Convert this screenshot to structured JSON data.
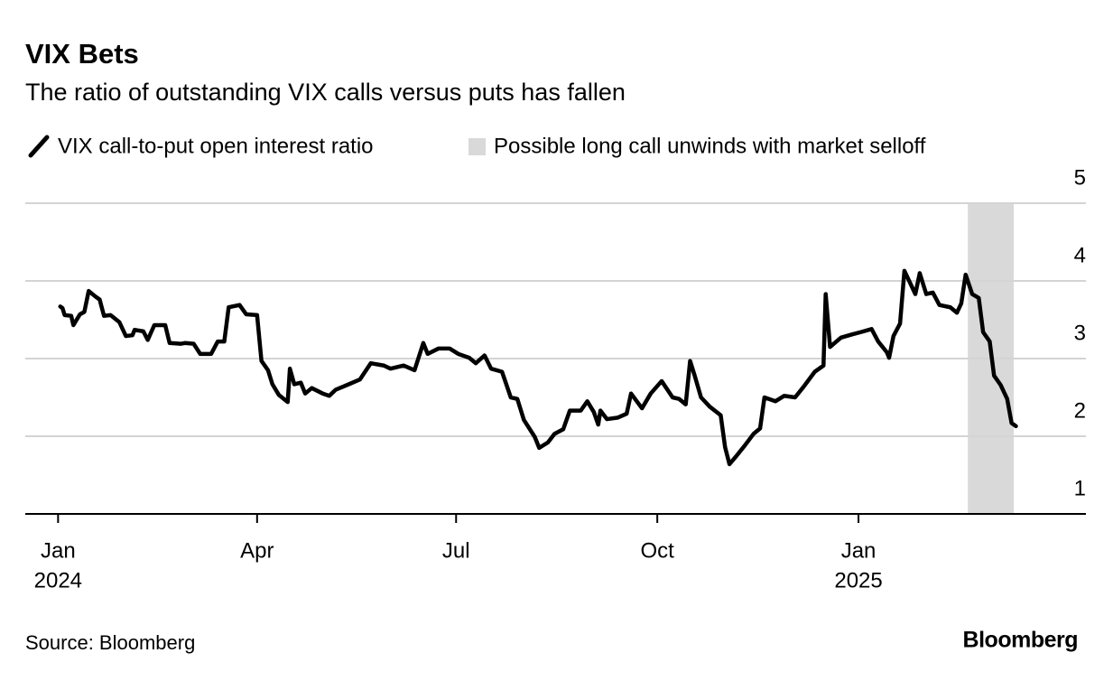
{
  "chart_data": {
    "type": "line",
    "title": "VIX Bets",
    "subtitle": "The ratio of outstanding VIX calls versus puts has fallen",
    "source": "Source: Bloomberg",
    "logo": "Bloomberg",
    "x": [
      "2024-01-02",
      "2024-01-03",
      "2024-01-04",
      "2024-01-07",
      "2024-01-08",
      "2024-01-11",
      "2024-01-13",
      "2024-01-15",
      "2024-01-18",
      "2024-01-20",
      "2024-01-22",
      "2024-01-25",
      "2024-01-29",
      "2024-02-01",
      "2024-02-04",
      "2024-02-05",
      "2024-02-09",
      "2024-02-11",
      "2024-02-14",
      "2024-02-19",
      "2024-02-21",
      "2024-02-26",
      "2024-02-28",
      "2024-03-03",
      "2024-03-06",
      "2024-03-11",
      "2024-03-14",
      "2024-03-17",
      "2024-03-19",
      "2024-03-24",
      "2024-03-27",
      "2024-04-01",
      "2024-04-03",
      "2024-04-06",
      "2024-04-08",
      "2024-04-11",
      "2024-04-15",
      "2024-04-16",
      "2024-04-18",
      "2024-04-21",
      "2024-04-23",
      "2024-04-26",
      "2024-05-01",
      "2024-05-04",
      "2024-05-07",
      "2024-05-13",
      "2024-05-18",
      "2024-05-23",
      "2024-05-29",
      "2024-06-01",
      "2024-06-07",
      "2024-06-12",
      "2024-06-16",
      "2024-06-18",
      "2024-06-23",
      "2024-06-28",
      "2024-07-02",
      "2024-07-07",
      "2024-07-10",
      "2024-07-14",
      "2024-07-17",
      "2024-07-22",
      "2024-07-26",
      "2024-07-29",
      "2024-08-01",
      "2024-08-06",
      "2024-08-08",
      "2024-08-12",
      "2024-08-15",
      "2024-08-19",
      "2024-08-22",
      "2024-08-27",
      "2024-08-30",
      "2024-09-02",
      "2024-09-04",
      "2024-09-05",
      "2024-09-08",
      "2024-09-13",
      "2024-09-17",
      "2024-09-19",
      "2024-09-24",
      "2024-09-28",
      "2024-10-03",
      "2024-10-08",
      "2024-10-11",
      "2024-10-14",
      "2024-10-16",
      "2024-10-18",
      "2024-10-21",
      "2024-10-25",
      "2024-10-30",
      "2024-11-01",
      "2024-11-03",
      "2024-11-06",
      "2024-11-10",
      "2024-11-14",
      "2024-11-17",
      "2024-11-19",
      "2024-11-24",
      "2024-11-28",
      "2024-12-03",
      "2024-12-07",
      "2024-12-12",
      "2024-12-16",
      "2024-12-17",
      "2024-12-19",
      "2024-12-24",
      "2024-12-29",
      "2025-01-02",
      "2025-01-07",
      "2025-01-10",
      "2025-01-14",
      "2025-01-15",
      "2025-01-17",
      "2025-01-20",
      "2025-01-22",
      "2025-01-27",
      "2025-01-29",
      "2025-02-01",
      "2025-02-04",
      "2025-02-07",
      "2025-02-12",
      "2025-02-15",
      "2025-02-17",
      "2025-02-19",
      "2025-02-22",
      "2025-02-25",
      "2025-02-27",
      "2025-03-02",
      "2025-03-04",
      "2025-03-07",
      "2025-03-10",
      "2025-03-12",
      "2025-03-14"
    ],
    "series": [
      {
        "name": "VIX call-to-put open interest ratio",
        "color": "#000000",
        "values": [
          3.67,
          3.65,
          3.56,
          3.55,
          3.43,
          3.57,
          3.6,
          3.87,
          3.8,
          3.76,
          3.55,
          3.56,
          3.47,
          3.29,
          3.3,
          3.37,
          3.35,
          3.24,
          3.43,
          3.43,
          3.2,
          3.19,
          3.2,
          3.19,
          3.06,
          3.06,
          3.22,
          3.22,
          3.66,
          3.69,
          3.57,
          3.56,
          2.97,
          2.85,
          2.67,
          2.53,
          2.44,
          2.87,
          2.67,
          2.69,
          2.55,
          2.62,
          2.55,
          2.52,
          2.6,
          2.67,
          2.73,
          2.94,
          2.91,
          2.87,
          2.91,
          2.85,
          3.2,
          3.06,
          3.13,
          3.13,
          3.06,
          3.01,
          2.94,
          3.04,
          2.87,
          2.83,
          2.5,
          2.48,
          2.21,
          1.99,
          1.85,
          1.92,
          2.03,
          2.09,
          2.33,
          2.33,
          2.45,
          2.31,
          2.15,
          2.33,
          2.22,
          2.24,
          2.29,
          2.55,
          2.36,
          2.55,
          2.71,
          2.5,
          2.48,
          2.41,
          2.97,
          2.79,
          2.5,
          2.38,
          2.27,
          1.86,
          1.64,
          1.74,
          1.88,
          2.03,
          2.1,
          2.5,
          2.45,
          2.52,
          2.5,
          2.64,
          2.83,
          2.91,
          3.83,
          3.15,
          3.27,
          3.31,
          3.34,
          3.38,
          3.22,
          3.08,
          3.01,
          3.29,
          3.45,
          4.13,
          3.83,
          4.1,
          3.83,
          3.85,
          3.69,
          3.66,
          3.59,
          3.71,
          4.08,
          3.83,
          3.78,
          3.34,
          3.22,
          2.78,
          2.66,
          2.48,
          2.17,
          2.13
        ]
      }
    ],
    "highlight": {
      "name": "Possible long call unwinds with market selloff",
      "color": "#d9d9d9",
      "start": "2025-02-20",
      "end": "2025-03-13"
    },
    "xlim": [
      "2023-12-17",
      "2025-04-15"
    ],
    "xticks": [
      {
        "value": "2024-01-01",
        "label": "Jan",
        "sublabel": "2024"
      },
      {
        "value": "2024-04-01",
        "label": "Apr"
      },
      {
        "value": "2024-07-01",
        "label": "Jul"
      },
      {
        "value": "2024-10-01",
        "label": "Oct"
      },
      {
        "value": "2025-01-01",
        "label": "Jan",
        "sublabel": "2025"
      }
    ],
    "ylim": [
      1,
      5
    ],
    "yticks": [
      1,
      2,
      3,
      4,
      5
    ],
    "grid": true
  }
}
